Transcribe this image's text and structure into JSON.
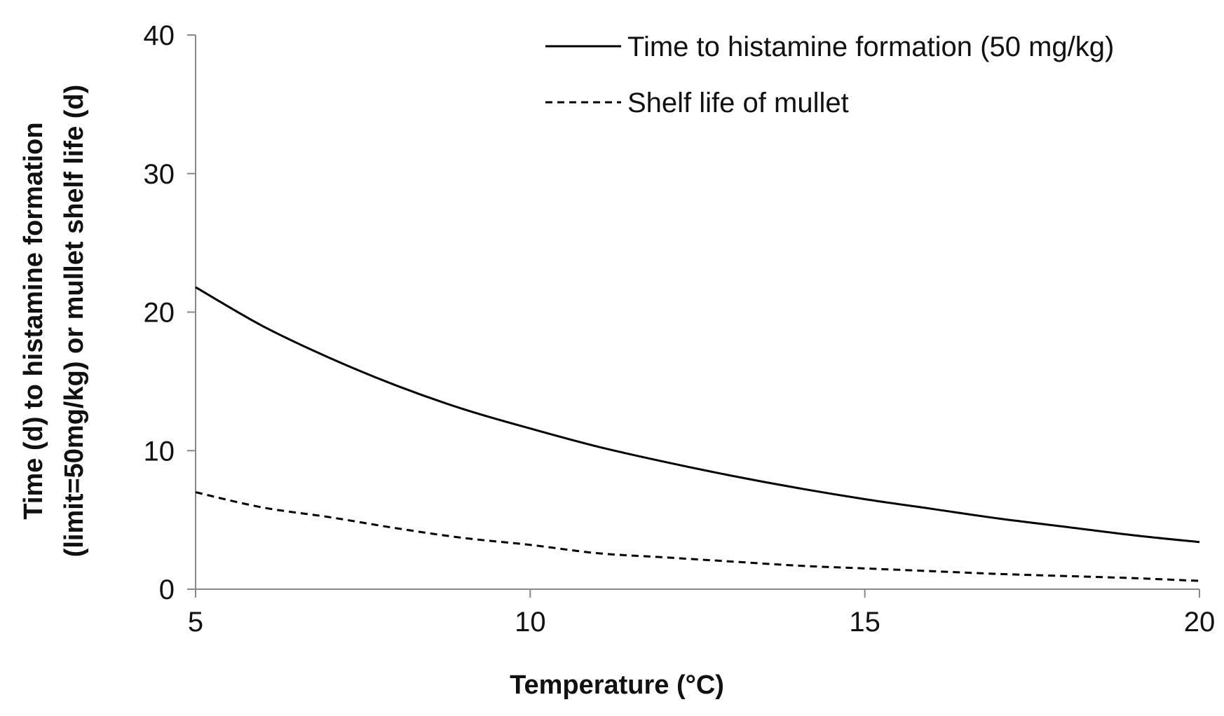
{
  "chart_data": {
    "type": "line",
    "title": "",
    "xlabel": "Temperature (°C)",
    "ylabel_line1": "Time (d) to histamine  formation",
    "ylabel_line2": "(limit=50mg/kg) or mullet shelf life (d)",
    "xlim": [
      5,
      20
    ],
    "ylim": [
      0,
      40
    ],
    "xticks": [
      5,
      10,
      15,
      20
    ],
    "yticks": [
      0,
      10,
      20,
      30,
      40
    ],
    "grid": false,
    "legend_position": "top-right",
    "series": [
      {
        "name": "Time to histamine formation (50 mg/kg)",
        "style": "solid",
        "color": "#000000",
        "x": [
          5,
          6,
          7,
          8,
          9,
          10,
          11,
          12,
          13,
          14,
          15,
          16,
          17,
          18,
          19,
          20
        ],
        "y": [
          21.8,
          19.0,
          16.7,
          14.7,
          13.0,
          11.6,
          10.3,
          9.2,
          8.2,
          7.3,
          6.5,
          5.8,
          5.1,
          4.5,
          3.9,
          3.4
        ]
      },
      {
        "name": "Shelf life of mullet",
        "style": "dashed",
        "color": "#000000",
        "x": [
          5,
          6,
          7,
          8,
          9,
          10,
          11,
          12,
          13,
          14,
          15,
          16,
          17,
          18,
          19,
          20
        ],
        "y": [
          7.0,
          5.9,
          5.2,
          4.4,
          3.7,
          3.2,
          2.6,
          2.3,
          2.0,
          1.7,
          1.5,
          1.3,
          1.1,
          0.95,
          0.8,
          0.6
        ]
      }
    ]
  }
}
